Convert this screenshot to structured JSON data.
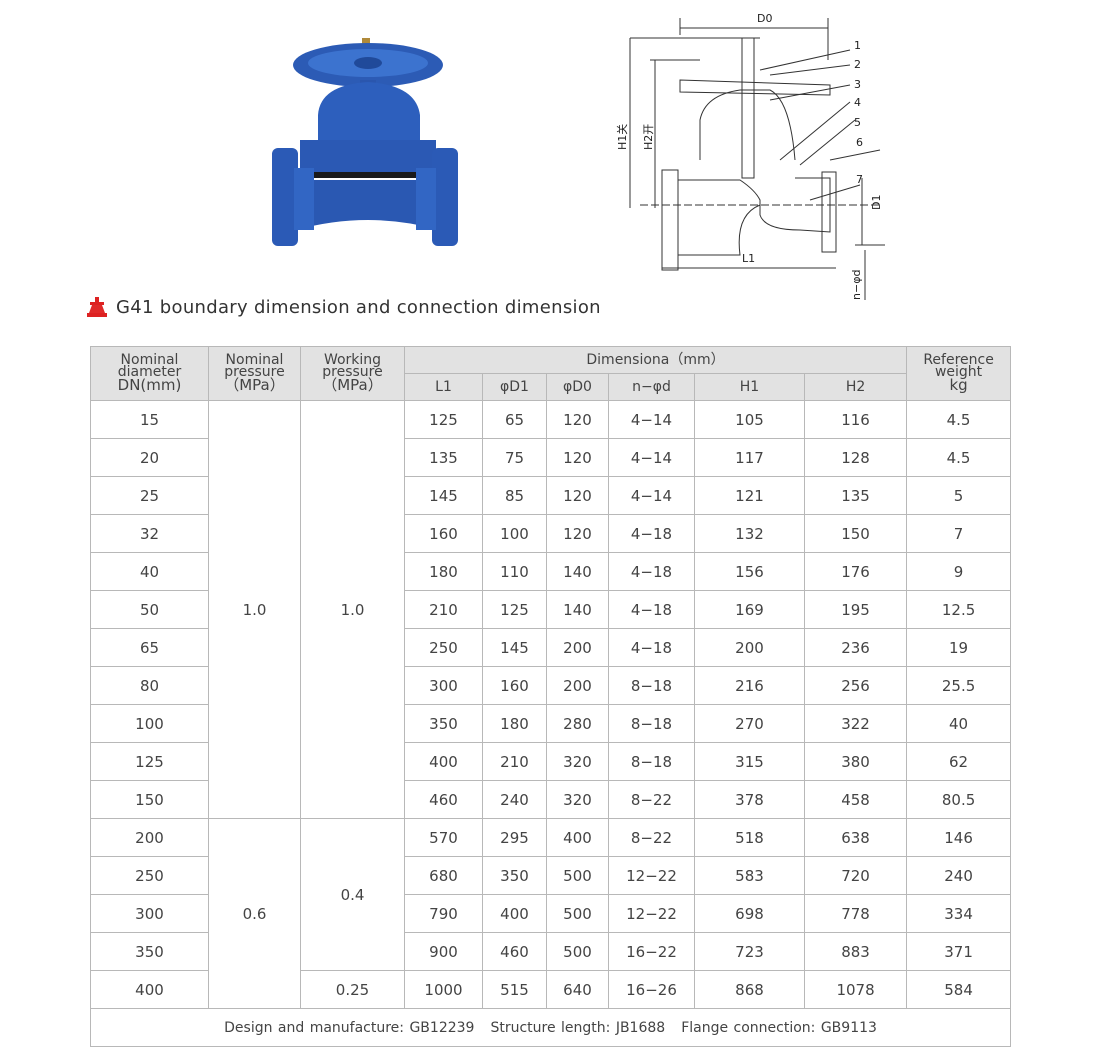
{
  "diagram_labels": {
    "d0": "D0",
    "parts": [
      "1",
      "2",
      "3",
      "4",
      "5",
      "6",
      "7"
    ],
    "h1": "H1关",
    "h2": "H2开",
    "d1": "D1",
    "l1": "L1",
    "nd": "n−φd"
  },
  "section_title": "G41 boundary dimension and connection dimension",
  "table": {
    "headers": {
      "dn": [
        "Nominal",
        "diameter",
        "DN(mm)"
      ],
      "nominal_pressure": [
        "Nominal",
        "pressure",
        "（MPa）"
      ],
      "working_pressure": [
        "Working",
        "pressure",
        "（MPa）"
      ],
      "dimension": "Dimensiona（mm）",
      "dimension_columns": [
        "L1",
        "φD1",
        "φD0",
        "n−φd",
        "H1",
        "H2"
      ],
      "weight": [
        "Reference",
        "weight",
        "kg"
      ]
    },
    "groups": [
      {
        "nominal_pressure": "1.0",
        "working_groups": [
          {
            "working_pressure": "1.0",
            "rows": [
              [
                "15",
                "125",
                "65",
                "120",
                "4−14",
                "105",
                "116",
                "4.5"
              ],
              [
                "20",
                "135",
                "75",
                "120",
                "4−14",
                "117",
                "128",
                "4.5"
              ],
              [
                "25",
                "145",
                "85",
                "120",
                "4−14",
                "121",
                "135",
                "5"
              ],
              [
                "32",
                "160",
                "100",
                "120",
                "4−18",
                "132",
                "150",
                "7"
              ],
              [
                "40",
                "180",
                "110",
                "140",
                "4−18",
                "156",
                "176",
                "9"
              ],
              [
                "50",
                "210",
                "125",
                "140",
                "4−18",
                "169",
                "195",
                "12.5"
              ],
              [
                "65",
                "250",
                "145",
                "200",
                "4−18",
                "200",
                "236",
                "19"
              ],
              [
                "80",
                "300",
                "160",
                "200",
                "8−18",
                "216",
                "256",
                "25.5"
              ],
              [
                "100",
                "350",
                "180",
                "280",
                "8−18",
                "270",
                "322",
                "40"
              ],
              [
                "125",
                "400",
                "210",
                "320",
                "8−18",
                "315",
                "380",
                "62"
              ],
              [
                "150",
                "460",
                "240",
                "320",
                "8−22",
                "378",
                "458",
                "80.5"
              ]
            ]
          }
        ]
      },
      {
        "nominal_pressure": "0.6",
        "working_groups": [
          {
            "working_pressure": "0.4",
            "rows": [
              [
                "200",
                "570",
                "295",
                "400",
                "8−22",
                "518",
                "638",
                "146"
              ],
              [
                "250",
                "680",
                "350",
                "500",
                "12−22",
                "583",
                "720",
                "240"
              ],
              [
                "300",
                "790",
                "400",
                "500",
                "12−22",
                "698",
                "778",
                "334"
              ],
              [
                "350",
                "900",
                "460",
                "500",
                "16−22",
                "723",
                "883",
                "371"
              ]
            ]
          },
          {
            "working_pressure": "0.25",
            "rows": [
              [
                "400",
                "1000",
                "515",
                "640",
                "16−26",
                "868",
                "1078",
                "584"
              ]
            ]
          }
        ]
      }
    ],
    "footer": [
      "Design and manufacture: GB12239",
      "Structure length: JB1688",
      "Flange connection: GB9113"
    ]
  }
}
